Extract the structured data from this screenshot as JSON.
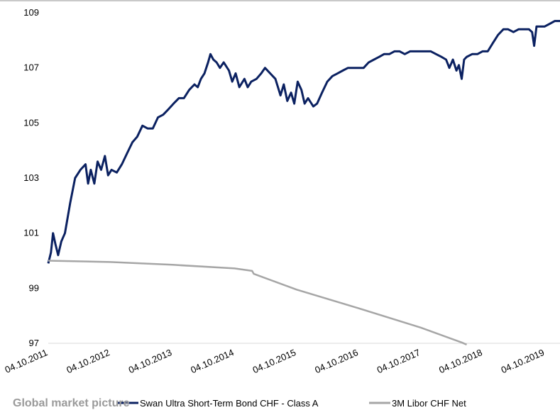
{
  "footer": {
    "heading": "Global market picture"
  },
  "chart_data": {
    "type": "line",
    "x_type": "date",
    "xlim": [
      "2011-10-04",
      "2019-12-31"
    ],
    "ylim": [
      97,
      109
    ],
    "y_ticks": [
      97,
      99,
      101,
      103,
      105,
      107,
      109
    ],
    "x_ticks": [
      "04.10.2011",
      "04.10.2012",
      "04.10.2013",
      "04.10.2014",
      "04.10.2015",
      "04.10.2016",
      "04.10.2017",
      "04.10.2018",
      "04.10.2019"
    ],
    "grid": false,
    "legend_position": "bottom",
    "series": [
      {
        "name": "Swan Ultra Short-Term Bond CHF - Class A",
        "color": "#0b2161",
        "points": [
          [
            "2011-10-04",
            99.9
          ],
          [
            "2011-10-20",
            100.3
          ],
          [
            "2011-11-01",
            101.0
          ],
          [
            "2011-11-15",
            100.6
          ],
          [
            "2011-12-01",
            100.2
          ],
          [
            "2011-12-20",
            100.7
          ],
          [
            "2012-01-10",
            101.0
          ],
          [
            "2012-02-10",
            102.1
          ],
          [
            "2012-03-10",
            103.0
          ],
          [
            "2012-04-10",
            103.3
          ],
          [
            "2012-05-10",
            103.5
          ],
          [
            "2012-05-25",
            102.8
          ],
          [
            "2012-06-10",
            103.3
          ],
          [
            "2012-07-01",
            102.8
          ],
          [
            "2012-07-20",
            103.6
          ],
          [
            "2012-08-10",
            103.3
          ],
          [
            "2012-09-01",
            103.8
          ],
          [
            "2012-09-20",
            103.1
          ],
          [
            "2012-10-10",
            103.3
          ],
          [
            "2012-11-10",
            103.2
          ],
          [
            "2012-12-10",
            103.5
          ],
          [
            "2013-01-10",
            103.9
          ],
          [
            "2013-02-10",
            104.3
          ],
          [
            "2013-03-10",
            104.5
          ],
          [
            "2013-04-10",
            104.9
          ],
          [
            "2013-05-10",
            104.8
          ],
          [
            "2013-06-10",
            104.8
          ],
          [
            "2013-07-10",
            105.2
          ],
          [
            "2013-08-10",
            105.3
          ],
          [
            "2013-09-10",
            105.5
          ],
          [
            "2013-10-10",
            105.7
          ],
          [
            "2013-11-10",
            105.9
          ],
          [
            "2013-12-10",
            105.9
          ],
          [
            "2014-01-10",
            106.2
          ],
          [
            "2014-02-10",
            106.4
          ],
          [
            "2014-03-01",
            106.3
          ],
          [
            "2014-03-20",
            106.6
          ],
          [
            "2014-04-10",
            106.8
          ],
          [
            "2014-05-01",
            107.2
          ],
          [
            "2014-05-15",
            107.5
          ],
          [
            "2014-06-01",
            107.3
          ],
          [
            "2014-06-20",
            107.2
          ],
          [
            "2014-07-10",
            107.0
          ],
          [
            "2014-08-01",
            107.2
          ],
          [
            "2014-09-01",
            106.9
          ],
          [
            "2014-09-20",
            106.5
          ],
          [
            "2014-10-10",
            106.8
          ],
          [
            "2014-11-01",
            106.3
          ],
          [
            "2014-12-01",
            106.6
          ],
          [
            "2014-12-20",
            106.3
          ],
          [
            "2015-01-10",
            106.5
          ],
          [
            "2015-02-10",
            106.6
          ],
          [
            "2015-03-10",
            106.8
          ],
          [
            "2015-04-01",
            107.0
          ],
          [
            "2015-05-01",
            106.8
          ],
          [
            "2015-06-01",
            106.6
          ],
          [
            "2015-07-01",
            106.0
          ],
          [
            "2015-07-20",
            106.4
          ],
          [
            "2015-08-10",
            105.8
          ],
          [
            "2015-09-01",
            106.1
          ],
          [
            "2015-09-20",
            105.7
          ],
          [
            "2015-10-10",
            106.5
          ],
          [
            "2015-11-01",
            106.2
          ],
          [
            "2015-11-20",
            105.7
          ],
          [
            "2015-12-10",
            105.9
          ],
          [
            "2016-01-10",
            105.6
          ],
          [
            "2016-02-01",
            105.7
          ],
          [
            "2016-03-01",
            106.1
          ],
          [
            "2016-04-01",
            106.5
          ],
          [
            "2016-05-01",
            106.7
          ],
          [
            "2016-06-01",
            106.8
          ],
          [
            "2016-07-01",
            106.9
          ],
          [
            "2016-08-01",
            107.0
          ],
          [
            "2016-09-01",
            107.0
          ],
          [
            "2016-10-01",
            107.0
          ],
          [
            "2016-11-01",
            107.0
          ],
          [
            "2016-12-01",
            107.2
          ],
          [
            "2017-01-01",
            107.3
          ],
          [
            "2017-02-01",
            107.4
          ],
          [
            "2017-03-01",
            107.5
          ],
          [
            "2017-04-01",
            107.5
          ],
          [
            "2017-05-01",
            107.6
          ],
          [
            "2017-06-01",
            107.6
          ],
          [
            "2017-07-01",
            107.5
          ],
          [
            "2017-08-01",
            107.6
          ],
          [
            "2017-09-01",
            107.6
          ],
          [
            "2017-10-01",
            107.6
          ],
          [
            "2017-11-01",
            107.6
          ],
          [
            "2017-12-01",
            107.6
          ],
          [
            "2018-01-01",
            107.5
          ],
          [
            "2018-02-01",
            107.4
          ],
          [
            "2018-03-01",
            107.3
          ],
          [
            "2018-03-20",
            107.0
          ],
          [
            "2018-04-10",
            107.3
          ],
          [
            "2018-05-01",
            106.9
          ],
          [
            "2018-05-15",
            107.1
          ],
          [
            "2018-06-01",
            106.6
          ],
          [
            "2018-06-15",
            107.3
          ],
          [
            "2018-07-01",
            107.4
          ],
          [
            "2018-08-01",
            107.5
          ],
          [
            "2018-09-01",
            107.5
          ],
          [
            "2018-10-01",
            107.6
          ],
          [
            "2018-11-01",
            107.6
          ],
          [
            "2018-12-01",
            107.9
          ],
          [
            "2019-01-01",
            108.2
          ],
          [
            "2019-02-01",
            108.4
          ],
          [
            "2019-03-01",
            108.4
          ],
          [
            "2019-04-01",
            108.3
          ],
          [
            "2019-05-01",
            108.4
          ],
          [
            "2019-06-01",
            108.4
          ],
          [
            "2019-07-01",
            108.4
          ],
          [
            "2019-07-20",
            108.3
          ],
          [
            "2019-08-01",
            107.8
          ],
          [
            "2019-08-15",
            108.5
          ],
          [
            "2019-09-01",
            108.5
          ],
          [
            "2019-10-01",
            108.5
          ],
          [
            "2019-11-01",
            108.6
          ],
          [
            "2019-12-01",
            108.7
          ],
          [
            "2019-12-31",
            108.7
          ]
        ]
      },
      {
        "name": "3M Libor CHF Net",
        "color": "#a6a6a6",
        "points": [
          [
            "2011-10-04",
            100.0
          ],
          [
            "2012-10-04",
            99.95
          ],
          [
            "2013-10-04",
            99.85
          ],
          [
            "2014-10-04",
            99.72
          ],
          [
            "2015-01-15",
            99.63
          ],
          [
            "2015-01-25",
            99.52
          ],
          [
            "2015-10-04",
            98.95
          ],
          [
            "2016-10-04",
            98.27
          ],
          [
            "2017-10-04",
            97.57
          ],
          [
            "2018-06-01",
            97.03
          ],
          [
            "2018-06-30",
            96.95
          ]
        ]
      }
    ]
  }
}
